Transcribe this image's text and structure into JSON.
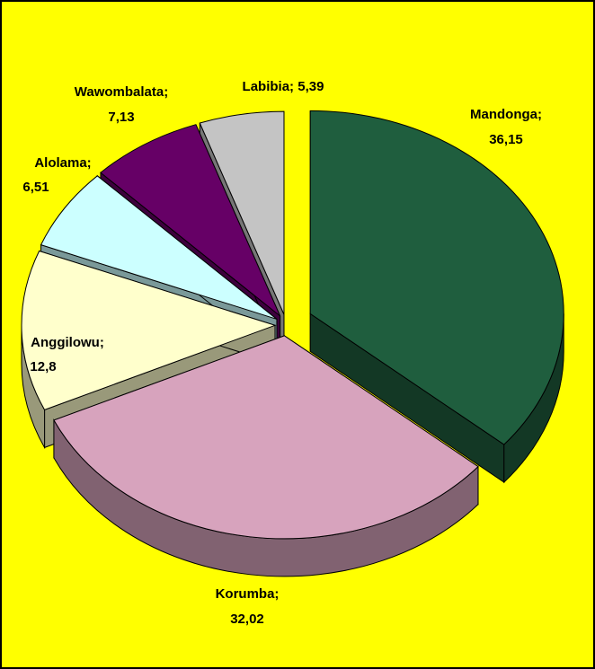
{
  "chart_data": {
    "type": "pie3d",
    "categories": [
      "Mandonga;",
      "Korumba;",
      "Anggilowu;",
      "Alolama;",
      "Wawombalata;",
      "Labibia;"
    ],
    "values": [
      36.15,
      32.02,
      12.8,
      6.51,
      7.13,
      5.39
    ],
    "value_labels": [
      "36,15",
      "32,02",
      "12,8",
      "6,51",
      "7,13",
      "5,39"
    ],
    "colors": [
      "#1f5e3e",
      "#d7a3bd",
      "#ffffcc",
      "#ccffff",
      "#660066",
      "#c4c4c4"
    ]
  }
}
